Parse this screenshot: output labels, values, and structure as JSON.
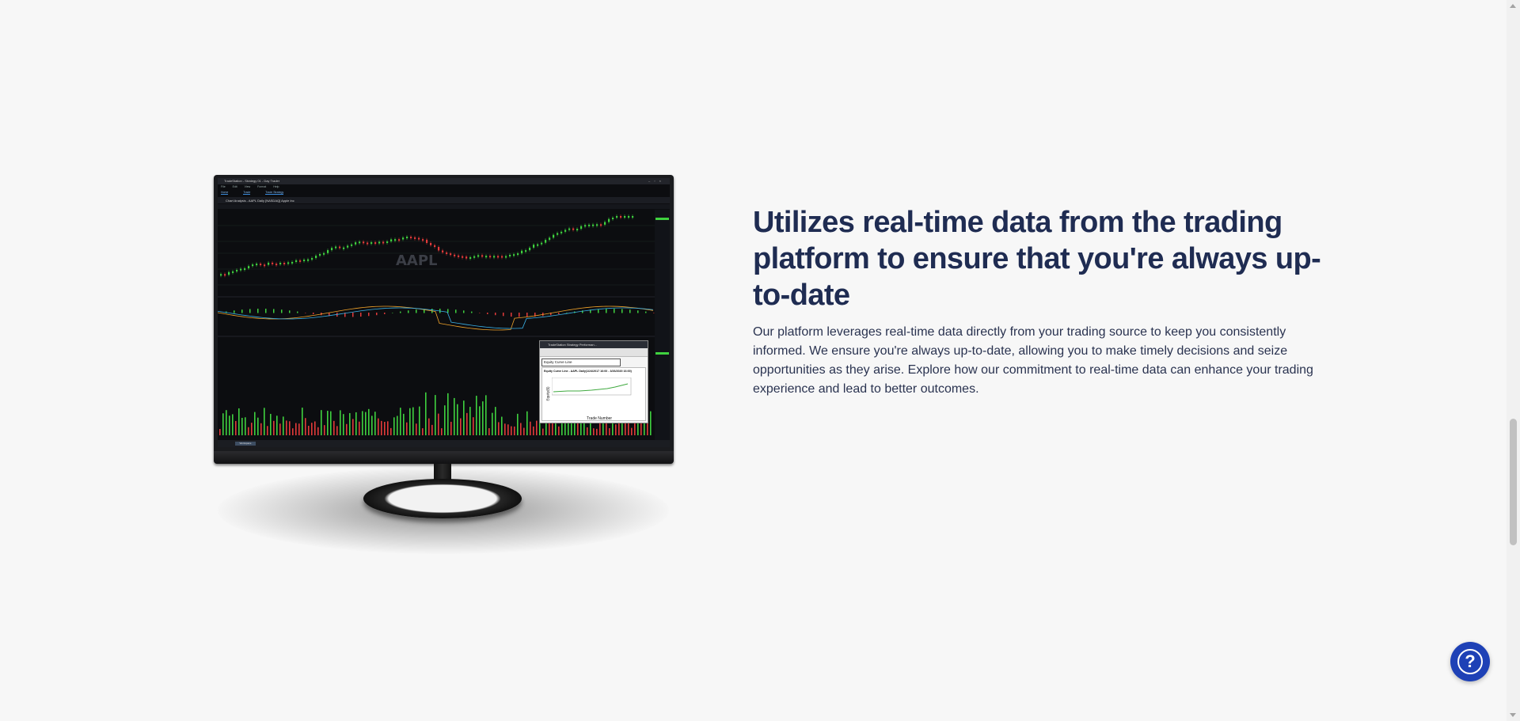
{
  "feature": {
    "headline": "Utilizes real-time data from the trading platform to ensure that you're always up-to-date",
    "body": "Our platform leverages real-time data directly from your trading source to keep you consistently informed. We ensure you're always up-to-date, allowing you to make timely decisions and seize opportunities as they arise. Explore how our commitment to real-time data can enhance your trading experience and lead to better outcomes."
  },
  "screen": {
    "window_title": "TradeStation - Strategy 01 - Day Trader",
    "menus": [
      "File",
      "Edit",
      "View",
      "Format",
      "Help"
    ],
    "tabs": [
      "Home",
      "Trade",
      "Trade Strategy"
    ],
    "chart_title": "Chart Analysis - AAPL Daily [NASDAQ] Apple Inc",
    "watermark": "AAPL",
    "status_tab": "Workspace",
    "equity_window": {
      "title": "TradeStation Strategy Performan...",
      "select_value": "Equity Curve Line",
      "chart_title": "Equity Curve Line - AAPL Daily(1/24/2017 16:00 - 3/26/2020 16:00)",
      "xlabel": "Trade Number",
      "ylabel": "Equity($)"
    }
  },
  "help": {
    "icon": "question-mark-icon",
    "symbol": "?",
    "color": "#1e41b6"
  },
  "colors": {
    "headline": "#1f2c52",
    "body": "#2a3350",
    "background": "#f7f7f7",
    "candle_up": "#3fd13f",
    "candle_down": "#e23a3a"
  }
}
